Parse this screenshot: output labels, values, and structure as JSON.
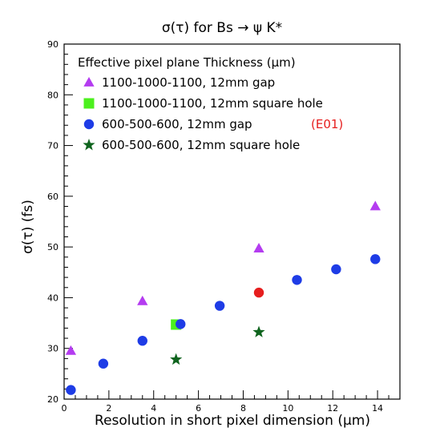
{
  "chart_data": {
    "type": "scatter",
    "title": "σ(τ) for Bs → ψ K*",
    "xlabel": "Resolution in short pixel dimension (μm)",
    "ylabel": "σ(τ)  (fs)",
    "xlim": [
      0,
      15
    ],
    "ylim": [
      20,
      90
    ],
    "x_ticks": [
      0,
      2,
      4,
      6,
      8,
      10,
      12,
      14
    ],
    "y_ticks": [
      20,
      30,
      40,
      50,
      60,
      70,
      80,
      90
    ],
    "legend_title": "Effective pixel plane Thickness (μm)",
    "legend_position": "top-left",
    "series": [
      {
        "name": "1100-1000-1100, 12mm gap",
        "marker": "triangle",
        "color": "#b43cf0",
        "points": [
          [
            0.3,
            29.5
          ],
          [
            3.5,
            39.3
          ],
          [
            8.7,
            49.7
          ],
          [
            13.9,
            58.0
          ]
        ]
      },
      {
        "name": "1100-1000-1100, 12mm square hole",
        "marker": "square",
        "color": "#4cf01e",
        "points": [
          [
            5.0,
            34.7
          ]
        ]
      },
      {
        "name": "600-500-600, 12mm gap",
        "marker": "circle",
        "color": "#1e3ce6",
        "points": [
          [
            0.3,
            21.8
          ],
          [
            1.75,
            27.0
          ],
          [
            3.5,
            31.5
          ],
          [
            5.2,
            34.8
          ],
          [
            6.95,
            38.4
          ],
          [
            8.7,
            41.0
          ],
          [
            10.4,
            43.5
          ],
          [
            12.15,
            45.6
          ],
          [
            13.9,
            47.6
          ]
        ]
      },
      {
        "name": "600-500-600, 12mm square hole",
        "marker": "star",
        "color": "#0f641e",
        "points": [
          [
            5.0,
            27.8
          ],
          [
            8.7,
            33.2
          ]
        ]
      }
    ],
    "highlight": {
      "series": 2,
      "point": 5,
      "color": "#e61e1e"
    },
    "annotation": {
      "text": "(E01)",
      "color": "#e61e1e",
      "series": 2
    }
  }
}
